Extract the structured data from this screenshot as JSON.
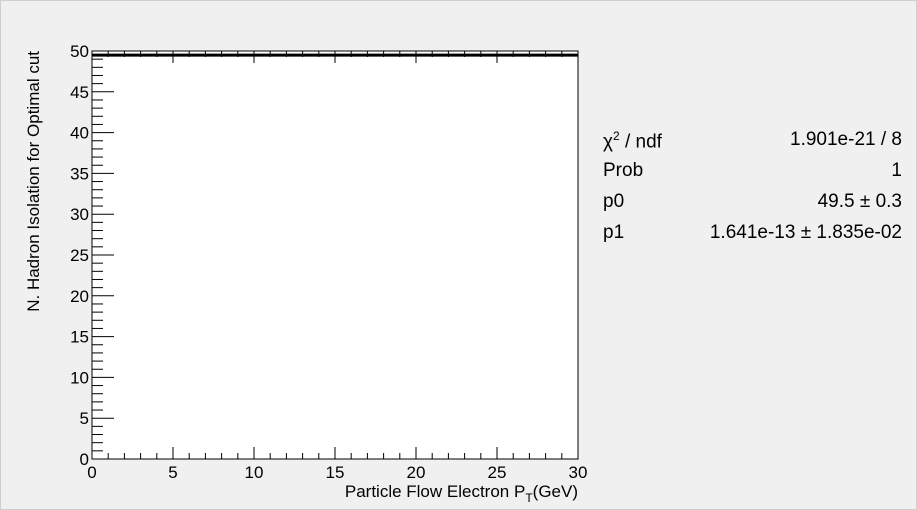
{
  "chart_data": {
    "type": "line",
    "title": "",
    "xlabel": "Particle Flow Electron P",
    "xlabel_sub": "T",
    "xlabel_unit": "(GeV)",
    "ylabel": "N. Hadron Isolation for Optimal cut",
    "xlim": [
      0,
      30
    ],
    "ylim": [
      0,
      50
    ],
    "x_ticks": [
      "0",
      "5",
      "10",
      "15",
      "20",
      "25",
      "30"
    ],
    "y_ticks": [
      "0",
      "5",
      "10",
      "15",
      "20",
      "25",
      "30",
      "35",
      "40",
      "45",
      "50"
    ],
    "grid": false,
    "series": [
      {
        "style": "line",
        "x": [
          0,
          30
        ],
        "y": [
          49.5,
          49.5
        ]
      }
    ]
  },
  "stats": [
    {
      "name_main": "χ",
      "name_sup": "2",
      "name_rest": " / ndf",
      "value": "1.901e-21 / 8"
    },
    {
      "name_main": "Prob",
      "name_sup": "",
      "name_rest": "",
      "value": "1"
    },
    {
      "name_main": "p0",
      "name_sup": "",
      "name_rest": "",
      "value": "49.5 ± 0.3"
    },
    {
      "name_main": "p1",
      "name_sup": "",
      "name_rest": "",
      "value": "1.641e-13 ± 1.835e-02"
    }
  ]
}
